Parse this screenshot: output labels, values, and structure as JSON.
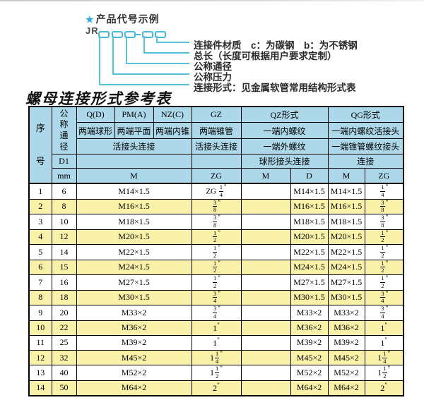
{
  "diagram": {
    "star": "★",
    "heading": "产品代号示例",
    "prefix": "JR",
    "labels": [
      "连接件材质　c：为碳钢　b：为不锈钢",
      "总长（长度可根据用户要求定制）",
      "公称通径",
      "公称压力",
      "连接形式：见金属软管常用结构形式表"
    ]
  },
  "title": "螺母连接形式参考表",
  "colors": {
    "header_blue": "#acd8e9",
    "row_yellow": "#f9f1a7",
    "diagram_cyan": "#58c2d8",
    "star_blue": "#29abe2"
  },
  "table": {
    "inch_mark": "\"",
    "header": {
      "seq": "序号",
      "dn": "公称通径",
      "d1": "D1",
      "mm": "mm",
      "cols": [
        "Q(D)",
        "PM(A)",
        "NZ(C)",
        "GZ",
        "QZ形式",
        "QG形式"
      ],
      "row2": [
        "两端球形",
        "两端平面",
        "两端内锥",
        "两端锥管",
        "一端内螺纹",
        "一端内螺纹活接头"
      ],
      "row3": [
        "活接头连接",
        "活接头连接",
        "一端外螺纹",
        "一端锥管螺纹接头"
      ],
      "row4": [
        "球形接头连接",
        "连接"
      ],
      "units": [
        "M",
        "ZG",
        "M",
        "D",
        "M",
        "ZG"
      ]
    },
    "rows": [
      {
        "no": "1",
        "dn": "6",
        "m": "M14×1.5",
        "gz": {
          "p": "ZG ",
          "n": "1",
          "d": "4"
        },
        "qz_m": "",
        "qz_d": "M14×1.5",
        "qg_m": "M14×1.5",
        "qg_zg": {
          "n": "1",
          "d": "4"
        }
      },
      {
        "no": "2",
        "dn": "8",
        "m": "M16×1.5",
        "gz": {
          "n": "3",
          "d": "8"
        },
        "qz_m": "",
        "qz_d": "M16×1.5",
        "qg_m": "M16×1.5",
        "qg_zg": {
          "n": "3",
          "d": "8"
        }
      },
      {
        "no": "3",
        "dn": "10",
        "m": "M18×1.5",
        "gz": {
          "n": "3",
          "d": "8"
        },
        "qz_m": "",
        "qz_d": "M18×1.5",
        "qg_m": "M18×1.5",
        "qg_zg": {
          "n": "3",
          "d": "8"
        }
      },
      {
        "no": "4",
        "dn": "12",
        "m": "M20×1.5",
        "gz": {
          "n": "1",
          "d": "2"
        },
        "qz_m": "",
        "qz_d": "M20×1.5",
        "qg_m": "M20×1.5",
        "qg_zg": {
          "n": "1",
          "d": "2"
        }
      },
      {
        "no": "5",
        "dn": "14",
        "m": "M22×1.5",
        "gz": {
          "n": "1",
          "d": "2"
        },
        "qz_m": "",
        "qz_d": "M22×1.5",
        "qg_m": "M22×1.5",
        "qg_zg": {
          "n": "1",
          "d": "2"
        }
      },
      {
        "no": "6",
        "dn": "15",
        "m": "M24×1.5",
        "gz": {
          "n": "1",
          "d": "2"
        },
        "qz_m": "",
        "qz_d": "M24×1.5",
        "qg_m": "M24×1.5",
        "qg_zg": {
          "n": "1",
          "d": "2"
        }
      },
      {
        "no": "7",
        "dn": "16",
        "m": "M27×1.5",
        "gz": {
          "n": "1",
          "d": "2"
        },
        "qz_m": "",
        "qz_d": "M27×1.5",
        "qg_m": "M27×1.5",
        "qg_zg": {
          "n": "1",
          "d": "2"
        }
      },
      {
        "no": "8",
        "dn": "18",
        "m": "M30×1.5",
        "gz": {
          "n": "3",
          "d": "4"
        },
        "qz_m": "",
        "qz_d": "M30×1.5",
        "qg_m": "M30×1.5",
        "qg_zg": {
          "n": "3",
          "d": "4"
        }
      },
      {
        "no": "9",
        "dn": "20",
        "m": "M33×2",
        "gz": {
          "n": "3",
          "d": "4"
        },
        "qz_m": "",
        "qz_d": "M33×2",
        "qg_m": "M33×2",
        "qg_zg": {
          "n": "3",
          "d": "4"
        }
      },
      {
        "no": "10",
        "dn": "22",
        "m": "M36×2",
        "gz": {
          "w": "1"
        },
        "qz_m": "",
        "qz_d": "M36×2",
        "qg_m": "M36×2",
        "qg_zg": {
          "w": "1"
        }
      },
      {
        "no": "11",
        "dn": "25",
        "m": "M39×2",
        "gz": {
          "w": "1"
        },
        "qz_m": "",
        "qz_d": "M39×2",
        "qg_m": "M39×2",
        "qg_zg": {
          "w": "1"
        }
      },
      {
        "no": "12",
        "dn": "32",
        "m": "M45×2",
        "gz": {
          "w": "1",
          "n": "1",
          "d": "4"
        },
        "qz_m": "",
        "qz_d": "M45×2",
        "qg_m": "M45×2",
        "qg_zg": {
          "w": "1",
          "n": "1",
          "d": "4"
        }
      },
      {
        "no": "13",
        "dn": "40",
        "m": "M52×2",
        "gz": {
          "w": "1",
          "n": "1",
          "d": "2"
        },
        "qz_m": "",
        "qz_d": "M52×2",
        "qg_m": "M52×2",
        "qg_zg": {
          "w": "1",
          "n": "1",
          "d": "2"
        }
      },
      {
        "no": "14",
        "dn": "50",
        "m": "M64×2",
        "gz": {
          "w": "2"
        },
        "qz_m": "",
        "qz_d": "M64×2",
        "qg_m": "M64×2",
        "qg_zg": {
          "w": "2"
        }
      }
    ]
  }
}
